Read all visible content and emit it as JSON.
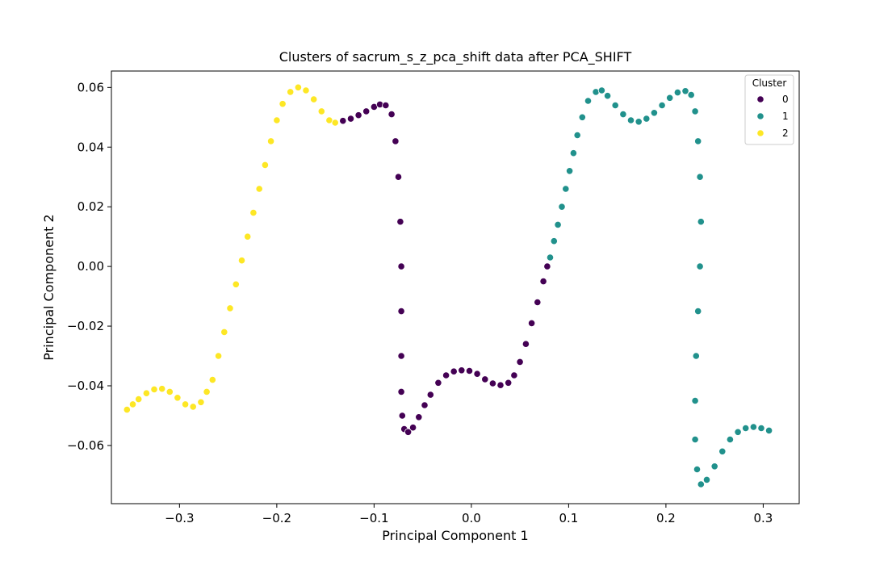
{
  "chart_data": {
    "type": "scatter",
    "title": "Clusters of sacrum_s_z_pca_shift data after PCA_SHIFT",
    "xlabel": "Principal Component 1",
    "ylabel": "Principal Component 2",
    "xlim": [
      -0.37,
      0.337
    ],
    "ylim": [
      -0.0795,
      0.0655
    ],
    "xticks": [
      -0.3,
      -0.2,
      -0.1,
      0.0,
      0.1,
      0.2,
      0.3
    ],
    "xtick_labels": [
      "−0.3",
      "−0.2",
      "−0.1",
      "0.0",
      "0.1",
      "0.2",
      "0.3"
    ],
    "yticks": [
      -0.06,
      -0.04,
      -0.02,
      0.0,
      0.02,
      0.04,
      0.06
    ],
    "ytick_labels": [
      "−0.06",
      "−0.04",
      "−0.02",
      "0.00",
      "0.02",
      "0.04",
      "0.06"
    ],
    "grid": false,
    "legend": {
      "title": "Cluster",
      "placement": "top-right",
      "entries": [
        "0",
        "1",
        "2"
      ]
    },
    "colors": {
      "0": "#440154",
      "1": "#21918c",
      "2": "#fde725"
    },
    "series": [
      {
        "name": "0",
        "color": "#440154",
        "points": [
          [
            -0.14,
            0.0482
          ],
          [
            -0.132,
            0.0488
          ],
          [
            -0.124,
            0.0495
          ],
          [
            -0.116,
            0.0507
          ],
          [
            -0.108,
            0.052
          ],
          [
            -0.1,
            0.0535
          ],
          [
            -0.094,
            0.0543
          ],
          [
            -0.088,
            0.054
          ],
          [
            -0.082,
            0.051
          ],
          [
            -0.078,
            0.042
          ],
          [
            -0.075,
            0.03
          ],
          [
            -0.073,
            0.015
          ],
          [
            -0.072,
            0.0
          ],
          [
            -0.072,
            -0.015
          ],
          [
            -0.072,
            -0.03
          ],
          [
            -0.072,
            -0.042
          ],
          [
            -0.071,
            -0.05
          ],
          [
            -0.069,
            -0.0545
          ],
          [
            -0.065,
            -0.0555
          ],
          [
            -0.06,
            -0.054
          ],
          [
            -0.054,
            -0.0505
          ],
          [
            -0.048,
            -0.0465
          ],
          [
            -0.042,
            -0.043
          ],
          [
            -0.034,
            -0.039
          ],
          [
            -0.026,
            -0.0365
          ],
          [
            -0.018,
            -0.0352
          ],
          [
            -0.01,
            -0.0348
          ],
          [
            -0.002,
            -0.035
          ],
          [
            0.006,
            -0.036
          ],
          [
            0.014,
            -0.0378
          ],
          [
            0.022,
            -0.0392
          ],
          [
            0.03,
            -0.0398
          ],
          [
            0.038,
            -0.039
          ],
          [
            0.044,
            -0.0365
          ],
          [
            0.05,
            -0.032
          ],
          [
            0.056,
            -0.026
          ],
          [
            0.062,
            -0.019
          ],
          [
            0.068,
            -0.012
          ],
          [
            0.074,
            -0.005
          ],
          [
            0.078,
            0.0
          ]
        ]
      },
      {
        "name": "1",
        "color": "#21918c",
        "points": [
          [
            0.081,
            0.003
          ],
          [
            0.085,
            0.0085
          ],
          [
            0.089,
            0.014
          ],
          [
            0.093,
            0.02
          ],
          [
            0.097,
            0.026
          ],
          [
            0.101,
            0.032
          ],
          [
            0.105,
            0.038
          ],
          [
            0.109,
            0.044
          ],
          [
            0.114,
            0.05
          ],
          [
            0.12,
            0.0555
          ],
          [
            0.128,
            0.0585
          ],
          [
            0.134,
            0.059
          ],
          [
            0.14,
            0.0572
          ],
          [
            0.148,
            0.054
          ],
          [
            0.156,
            0.051
          ],
          [
            0.164,
            0.049
          ],
          [
            0.172,
            0.0485
          ],
          [
            0.18,
            0.0495
          ],
          [
            0.188,
            0.0515
          ],
          [
            0.196,
            0.054
          ],
          [
            0.204,
            0.0565
          ],
          [
            0.212,
            0.0583
          ],
          [
            0.22,
            0.0588
          ],
          [
            0.226,
            0.0575
          ],
          [
            0.23,
            0.052
          ],
          [
            0.233,
            0.042
          ],
          [
            0.235,
            0.03
          ],
          [
            0.236,
            0.015
          ],
          [
            0.235,
            0.0
          ],
          [
            0.233,
            -0.015
          ],
          [
            0.231,
            -0.03
          ],
          [
            0.23,
            -0.045
          ],
          [
            0.23,
            -0.058
          ],
          [
            0.232,
            -0.068
          ],
          [
            0.236,
            -0.073
          ],
          [
            0.242,
            -0.0715
          ],
          [
            0.25,
            -0.067
          ],
          [
            0.258,
            -0.062
          ],
          [
            0.266,
            -0.058
          ],
          [
            0.274,
            -0.0555
          ],
          [
            0.282,
            -0.0542
          ],
          [
            0.29,
            -0.0538
          ],
          [
            0.298,
            -0.0542
          ],
          [
            0.306,
            -0.055
          ]
        ]
      },
      {
        "name": "2",
        "color": "#fde725",
        "points": [
          [
            -0.354,
            -0.048
          ],
          [
            -0.348,
            -0.0462
          ],
          [
            -0.342,
            -0.0445
          ],
          [
            -0.334,
            -0.0425
          ],
          [
            -0.326,
            -0.0412
          ],
          [
            -0.318,
            -0.041
          ],
          [
            -0.31,
            -0.042
          ],
          [
            -0.302,
            -0.044
          ],
          [
            -0.294,
            -0.0462
          ],
          [
            -0.286,
            -0.047
          ],
          [
            -0.278,
            -0.0455
          ],
          [
            -0.272,
            -0.042
          ],
          [
            -0.266,
            -0.038
          ],
          [
            -0.26,
            -0.03
          ],
          [
            -0.254,
            -0.022
          ],
          [
            -0.248,
            -0.014
          ],
          [
            -0.242,
            -0.006
          ],
          [
            -0.236,
            0.002
          ],
          [
            -0.23,
            0.01
          ],
          [
            -0.224,
            0.018
          ],
          [
            -0.218,
            0.026
          ],
          [
            -0.212,
            0.034
          ],
          [
            -0.206,
            0.042
          ],
          [
            -0.2,
            0.049
          ],
          [
            -0.194,
            0.0545
          ],
          [
            -0.186,
            0.0585
          ],
          [
            -0.178,
            0.06
          ],
          [
            -0.17,
            0.059
          ],
          [
            -0.162,
            0.056
          ],
          [
            -0.154,
            0.052
          ],
          [
            -0.146,
            0.049
          ],
          [
            -0.14,
            0.0482
          ]
        ]
      }
    ]
  }
}
